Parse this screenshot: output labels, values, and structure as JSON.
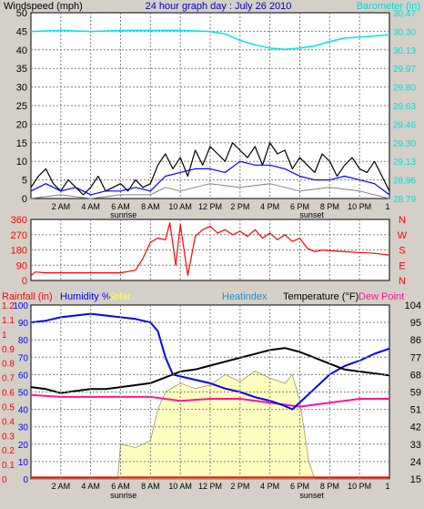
{
  "colors": {
    "background": "#d4d0c8",
    "plot_bg": "#ffffff",
    "grid": "#808080",
    "wind": "#000000",
    "gust_avg": "#0000ff",
    "wind_min": "#808080",
    "barometer": "#00e5e5",
    "direction": "#ff0000",
    "temperature": "#000000",
    "humidity": "#0000ff",
    "dewpoint": "#ff1493",
    "heatindex": "#20a0e0",
    "solar": "#ffffc0",
    "solar_edge": "#9a9a66",
    "rain": "#ff0000"
  },
  "chart_data": [
    {
      "type": "line",
      "panel": "wind_barometer",
      "title": "24 hour graph day : July 26 2010",
      "ylabel": "Windspeed (mph)",
      "y2label": "Barometer (in)",
      "ylim": [
        0,
        50
      ],
      "y_ticks": [
        "0",
        "5",
        "10",
        "15",
        "20",
        "25",
        "30",
        "35",
        "40",
        "45",
        "50"
      ],
      "y2lim": [
        28.79,
        30.47
      ],
      "y2_ticks": [
        "28.79",
        "28.96",
        "29.13",
        "29.30",
        "29.46",
        "29.63",
        "29.80",
        "29.97",
        "30.13",
        "30.30",
        "30.47"
      ],
      "x_ticks": [
        "2 AM",
        "4 AM",
        "6 AM",
        "8 AM",
        "10 AM",
        "12 PM",
        "2 PM",
        "4 PM",
        "6 PM",
        "8 PM",
        "10 PM",
        "1"
      ],
      "x_markers": [
        "sunrise",
        "sunset"
      ],
      "grid": true,
      "series": [
        {
          "key": "barometer",
          "x": [
            0,
            2,
            4,
            6,
            8,
            10,
            12,
            13,
            14,
            15,
            16,
            17,
            18,
            19,
            20,
            21,
            22,
            23,
            24
          ],
          "y": [
            30.3,
            30.31,
            30.3,
            30.31,
            30.31,
            30.31,
            30.3,
            30.28,
            30.22,
            30.18,
            30.15,
            30.14,
            30.15,
            30.17,
            30.21,
            30.24,
            30.25,
            30.26,
            30.27
          ]
        },
        {
          "key": "wind",
          "x": [
            0,
            0.5,
            1,
            1.5,
            2,
            2.5,
            3,
            3.5,
            4,
            4.5,
            5,
            5.5,
            6,
            6.5,
            7,
            7.5,
            8,
            8.5,
            9,
            9.5,
            10,
            10.5,
            11,
            11.5,
            12,
            12.5,
            13,
            13.5,
            14,
            14.5,
            15,
            15.5,
            16,
            16.5,
            17,
            17.5,
            18,
            18.5,
            19,
            19.5,
            20,
            20.5,
            21,
            21.5,
            22,
            22.5,
            23,
            23.5,
            24
          ],
          "y": [
            3,
            6,
            8,
            4,
            2,
            5,
            3,
            1,
            3,
            6,
            2,
            3,
            4,
            2,
            5,
            3,
            4,
            9,
            12,
            8,
            11,
            6,
            13,
            9,
            14,
            12,
            10,
            15,
            13,
            11,
            14,
            9,
            15,
            12,
            13,
            8,
            11,
            9,
            7,
            12,
            10,
            6,
            9,
            11,
            8,
            7,
            10,
            6,
            2
          ]
        },
        {
          "key": "gust_avg",
          "x": [
            0,
            1,
            2,
            3,
            4,
            5,
            6,
            7,
            8,
            9,
            10,
            11,
            12,
            13,
            14,
            15,
            16,
            17,
            18,
            19,
            20,
            21,
            22,
            23,
            24
          ],
          "y": [
            2,
            4,
            2,
            3,
            1,
            2,
            2,
            3,
            2,
            6,
            7,
            8,
            8,
            7,
            10,
            9,
            9,
            8,
            6,
            5,
            5,
            6,
            5,
            4,
            1
          ]
        },
        {
          "key": "wind_min",
          "x": [
            0,
            2,
            4,
            6,
            8,
            9,
            10,
            12,
            14,
            16,
            18,
            20,
            22,
            24
          ],
          "y": [
            0,
            1,
            0,
            1,
            1,
            3,
            2,
            4,
            3,
            4,
            2,
            3,
            2,
            0
          ]
        }
      ]
    },
    {
      "type": "line",
      "panel": "wind_direction",
      "ylim": [
        0,
        360
      ],
      "y_ticks": [
        "0",
        "90",
        "180",
        "270",
        "360"
      ],
      "y2_ticks": [
        "N",
        "W",
        "S",
        "E",
        "N"
      ],
      "x_ticks": [],
      "grid": true,
      "series": [
        {
          "key": "direction",
          "x": [
            0,
            0.3,
            1,
            2,
            3,
            4,
            5,
            6,
            7,
            7.5,
            8,
            8.5,
            9,
            9.3,
            9.7,
            10,
            10.5,
            11,
            11.5,
            12,
            12.5,
            13,
            13.5,
            14,
            14.5,
            15,
            15.5,
            16,
            16.5,
            17,
            17.5,
            18,
            18.5,
            19,
            19.5,
            20,
            21,
            22,
            23,
            24
          ],
          "y": [
            30,
            50,
            45,
            45,
            45,
            45,
            45,
            45,
            60,
            130,
            225,
            250,
            240,
            340,
            90,
            330,
            30,
            260,
            300,
            320,
            280,
            300,
            270,
            290,
            260,
            300,
            250,
            280,
            240,
            270,
            230,
            250,
            190,
            170,
            180,
            175,
            170,
            165,
            160,
            150
          ]
        }
      ]
    },
    {
      "type": "line",
      "panel": "temperature_humidity",
      "labels": [
        "Rainfall (in)",
        "Humidity %",
        "Solar",
        "Heatindex",
        "Temperature (°F)",
        "Dew Point"
      ],
      "y_rain_ticks": [
        "0",
        "0.1",
        "0.2",
        "0.3",
        "0.4",
        "0.5",
        "0.6",
        "0.7",
        "0.8",
        "0.9",
        "1",
        "1.1",
        "1.2"
      ],
      "y_hum_ticks": [
        "0",
        "10",
        "20",
        "30",
        "40",
        "50",
        "60",
        "70",
        "80",
        "90",
        "100"
      ],
      "y_temp_ticks": [
        "15",
        "24",
        "33",
        "42",
        "51",
        "59",
        "68",
        "77",
        "86",
        "95",
        "104"
      ],
      "x_ticks": [
        "2 AM",
        "4 AM",
        "6 AM",
        "8 AM",
        "10 AM",
        "12 PM",
        "2 PM",
        "4 PM",
        "6 PM",
        "8 PM",
        "10 PM",
        "1"
      ],
      "x_markers": [
        "sunrise",
        "sunset"
      ],
      "grid": true,
      "series": [
        {
          "key": "humidity",
          "x": [
            0,
            1,
            2,
            3,
            4,
            5,
            6,
            7,
            8,
            8.5,
            9,
            9.5,
            10,
            11,
            12,
            13,
            14,
            15,
            16,
            17,
            17.5,
            18,
            19,
            20,
            21,
            22,
            23,
            24
          ],
          "y": [
            90,
            91,
            93,
            94,
            95,
            94,
            93,
            92,
            90,
            85,
            70,
            60,
            59,
            57,
            55,
            52,
            50,
            47,
            45,
            42,
            40,
            44,
            52,
            60,
            65,
            68,
            72,
            75
          ]
        },
        {
          "key": "temperature",
          "x": [
            0,
            1,
            2,
            3,
            4,
            5,
            6,
            7,
            8,
            9,
            10,
            11,
            12,
            13,
            14,
            15,
            16,
            17,
            18,
            19,
            20,
            21,
            22,
            23,
            24
          ],
          "y": [
            62,
            61,
            59,
            60,
            61,
            61,
            62,
            63,
            64,
            67,
            70,
            71,
            73,
            75,
            77,
            79,
            81,
            82,
            80,
            77,
            74,
            71,
            70,
            69,
            68
          ]
        },
        {
          "key": "dewpoint",
          "x": [
            0,
            2,
            4,
            6,
            8,
            10,
            12,
            14,
            16,
            18,
            20,
            22,
            24
          ],
          "y": [
            58,
            57,
            57,
            57,
            57,
            55,
            56,
            56,
            54,
            52,
            54,
            56,
            56
          ]
        },
        {
          "key": "solar",
          "x": [
            0,
            5.8,
            6,
            7,
            8,
            8.5,
            9,
            10,
            11,
            12,
            13,
            14,
            15,
            16,
            17,
            17.5,
            18,
            18.6,
            19,
            24
          ],
          "y": [
            0,
            0,
            20,
            18,
            22,
            40,
            50,
            55,
            52,
            54,
            60,
            56,
            62,
            58,
            55,
            60,
            45,
            10,
            0,
            0
          ]
        },
        {
          "key": "rain",
          "x": [
            0,
            24
          ],
          "y": [
            0.01,
            0.01
          ]
        }
      ]
    }
  ]
}
